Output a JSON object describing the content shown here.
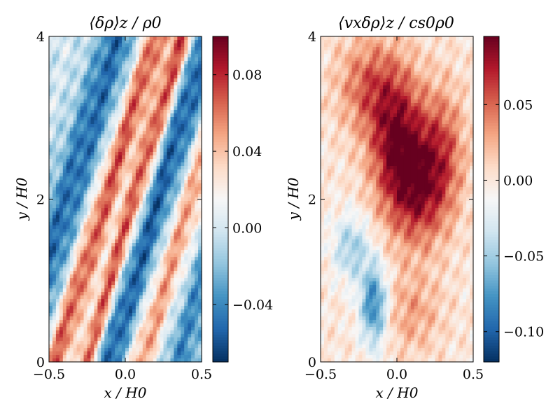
{
  "chart_data": [
    {
      "type": "heatmap",
      "title": "⟨δρ⟩z / ρ0",
      "xlabel": "x / H0",
      "ylabel": "y / H0",
      "xlim": [
        -0.5,
        0.5
      ],
      "ylim": [
        0,
        4
      ],
      "xticks": [
        -0.5,
        0.0,
        0.5
      ],
      "xtick_labels": [
        "−0.5",
        "0.0",
        "0.5"
      ],
      "yticks": [
        0,
        2,
        4
      ],
      "ytick_labels": [
        "0",
        "2",
        "4"
      ],
      "colormap": "RdBu_r",
      "clim": [
        -0.07,
        0.1
      ],
      "colorbar_ticks": [
        0.08,
        0.04,
        0.0,
        -0.04
      ],
      "colorbar_tick_labels": [
        "0.08",
        "0.04",
        "0.00",
        "−0.04"
      ],
      "bands": [
        {
          "x_at_y0": -0.46,
          "x_at_y4": 0.2,
          "amplitude": 0.07,
          "width": 0.09
        },
        {
          "x_at_y0": -0.25,
          "x_at_y4": 0.38,
          "amplitude": 0.085,
          "width": 0.07
        },
        {
          "x_at_y0": 0.1,
          "x_at_y4": 0.75,
          "amplitude": 0.055,
          "width": 0.1
        },
        {
          "x_at_y0": -0.12,
          "x_at_y4": 0.55,
          "amplitude": -0.055,
          "width": 0.14
        },
        {
          "x_at_y0": -0.7,
          "x_at_y4": -0.05,
          "amplitude": -0.05,
          "width": 0.14
        },
        {
          "x_at_y0": 0.35,
          "x_at_y4": 1.0,
          "amplitude": -0.04,
          "width": 0.12
        }
      ]
    },
    {
      "type": "heatmap",
      "title": "⟨vxδρ⟩z / cs0ρ0",
      "xlabel": "x / H0",
      "ylabel": "y / H0",
      "xlim": [
        -0.5,
        0.5
      ],
      "ylim": [
        0,
        4
      ],
      "xticks": [
        -0.5,
        0.0,
        0.5
      ],
      "xtick_labels": [
        "−0.5",
        "0.0",
        "0.5"
      ],
      "yticks": [
        0,
        2,
        4
      ],
      "ytick_labels": [
        "0",
        "2",
        "4"
      ],
      "colormap": "RdBu_r",
      "clim": [
        -0.12,
        0.095
      ],
      "colorbar_ticks": [
        0.05,
        0.0,
        -0.05,
        -0.1
      ],
      "colorbar_tick_labels": [
        "0.05",
        "0.00",
        "−0.05",
        "−0.10"
      ],
      "blobs": [
        {
          "x": 0.0,
          "y": 2.7,
          "amplitude": 0.085,
          "sx": 0.18,
          "sy": 0.9
        },
        {
          "x": 0.15,
          "y": 2.1,
          "amplitude": 0.06,
          "sx": 0.18,
          "sy": 0.7
        },
        {
          "x": -0.2,
          "y": 3.4,
          "amplitude": 0.045,
          "sx": 0.2,
          "sy": 0.6
        },
        {
          "x": 0.3,
          "y": 2.6,
          "amplitude": 0.05,
          "sx": 0.15,
          "sy": 0.8
        },
        {
          "x": -0.15,
          "y": 0.7,
          "amplitude": -0.09,
          "sx": 0.09,
          "sy": 0.5
        },
        {
          "x": -0.3,
          "y": 1.4,
          "amplitude": -0.05,
          "sx": 0.12,
          "sy": 0.4
        },
        {
          "x": 0.1,
          "y": 0.6,
          "amplitude": 0.03,
          "sx": 0.2,
          "sy": 0.5
        }
      ]
    }
  ]
}
